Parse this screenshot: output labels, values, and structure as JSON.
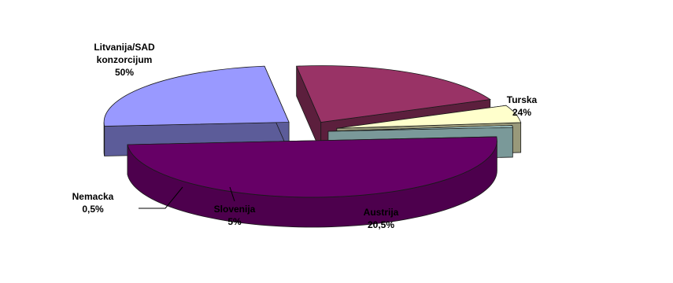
{
  "chart_data": {
    "type": "pie",
    "style": "3d-exploded",
    "title": "",
    "slices": [
      {
        "label_lines": [
          "Litvanija/SAD",
          "konzorcijum"
        ],
        "value": 50,
        "value_text": "50%",
        "color": "#660066"
      },
      {
        "label_lines": [
          "Turska"
        ],
        "value": 24,
        "value_text": "24%",
        "color": "#9999ff"
      },
      {
        "label_lines": [
          "Austrija"
        ],
        "value": 20.5,
        "value_text": "20,5%",
        "color": "#993366"
      },
      {
        "label_lines": [
          "Slovenija"
        ],
        "value": 5,
        "value_text": "5%",
        "color": "#ffffcc"
      },
      {
        "label_lines": [
          "Nemacka"
        ],
        "value": 0.5,
        "value_text": "0,5%",
        "color": "#ccffff"
      }
    ]
  }
}
